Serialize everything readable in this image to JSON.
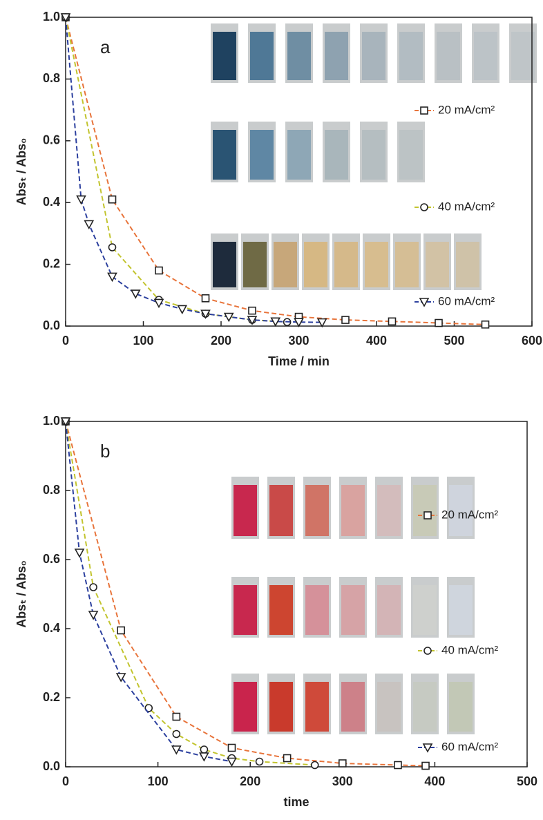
{
  "chart_data": [
    {
      "type": "line",
      "annotation": "a",
      "xlabel": "Time / min",
      "ylabel": "Absₜ / Abs₀",
      "xlim": [
        0,
        600
      ],
      "xticks": [
        0,
        100,
        200,
        300,
        400,
        500,
        600
      ],
      "ylim": [
        0,
        1
      ],
      "yticks": [
        {
          "value": 0,
          "label": "0.0"
        },
        0.2,
        0.4,
        0.6,
        0.8,
        {
          "value": 1,
          "label": "1.0"
        }
      ],
      "series": [
        {
          "name": "20 mA/cm²",
          "color": "#e8743b",
          "marker": "square",
          "x": [
            0,
            60,
            120,
            180,
            240,
            300,
            360,
            420,
            480,
            540
          ],
          "values": [
            1.0,
            0.41,
            0.18,
            0.09,
            0.05,
            0.03,
            0.02,
            0.015,
            0.01,
            0.005
          ]
        },
        {
          "name": "40 mA/cm²",
          "color": "#c2c42e",
          "marker": "circle",
          "x": [
            0,
            60,
            120,
            180,
            240,
            285
          ],
          "values": [
            1.0,
            0.255,
            0.085,
            0.04,
            0.02,
            0.013
          ]
        },
        {
          "name": "60 mA/cm²",
          "color": "#2b3f9e",
          "marker": "triangle-down",
          "x": [
            0,
            20,
            30,
            60,
            90,
            120,
            150,
            180,
            210,
            240,
            270,
            300,
            330
          ],
          "values": [
            1.0,
            0.41,
            0.33,
            0.16,
            0.105,
            0.075,
            0.055,
            0.04,
            0.03,
            0.02,
            0.015,
            0.013,
            0.012
          ]
        }
      ]
    },
    {
      "type": "line",
      "annotation": "b",
      "xlabel": "time",
      "ylabel": "Absₜ / Abs₀",
      "xlim": [
        0,
        500
      ],
      "xticks": [
        0,
        100,
        200,
        300,
        400,
        500
      ],
      "ylim": [
        0,
        1
      ],
      "yticks": [
        {
          "value": 0,
          "label": "0.0"
        },
        0.2,
        0.4,
        0.6,
        0.8,
        {
          "value": 1,
          "label": "1.0"
        }
      ],
      "series": [
        {
          "name": "20 mA/cm²",
          "color": "#e8743b",
          "marker": "square",
          "x": [
            0,
            60,
            120,
            180,
            240,
            300,
            360,
            390
          ],
          "values": [
            1.0,
            0.395,
            0.145,
            0.055,
            0.025,
            0.01,
            0.005,
            0.003
          ]
        },
        {
          "name": "40 mA/cm²",
          "color": "#c2c42e",
          "marker": "circle",
          "x": [
            0,
            30,
            90,
            120,
            150,
            180,
            210,
            270
          ],
          "values": [
            1.0,
            0.52,
            0.17,
            0.095,
            0.05,
            0.025,
            0.015,
            0.005
          ]
        },
        {
          "name": "60 mA/cm²",
          "color": "#2b3f9e",
          "marker": "triangle-down",
          "x": [
            0,
            15,
            30,
            60,
            120,
            150,
            180
          ],
          "values": [
            1.0,
            0.62,
            0.44,
            0.26,
            0.05,
            0.03,
            0.015
          ]
        }
      ]
    }
  ]
}
